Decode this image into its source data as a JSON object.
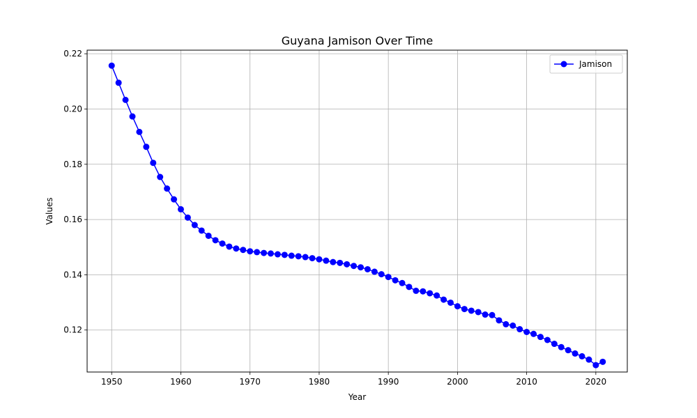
{
  "chart_data": {
    "type": "line",
    "title": "Guyana Jamison Over Time",
    "xlabel": "Year",
    "ylabel": "Values",
    "xlim": [
      1946.45,
      2024.55
    ],
    "ylim": [
      0.1048,
      0.2213
    ],
    "xticks": [
      1950,
      1960,
      1970,
      1980,
      1990,
      2000,
      2010,
      2020
    ],
    "xtick_labels": [
      "1950",
      "1960",
      "1970",
      "1980",
      "1990",
      "2000",
      "2010",
      "2020"
    ],
    "yticks": [
      0.12,
      0.14,
      0.16,
      0.18,
      0.2,
      0.22
    ],
    "ytick_labels": [
      "0.12",
      "0.14",
      "0.16",
      "0.18",
      "0.20",
      "0.22"
    ],
    "grid": true,
    "legend_position": "top-right",
    "series": [
      {
        "name": "Jamison",
        "color": "#0000ff",
        "marker": "circle",
        "x": [
          1950,
          1951,
          1952,
          1953,
          1954,
          1955,
          1956,
          1957,
          1958,
          1959,
          1960,
          1961,
          1962,
          1963,
          1964,
          1965,
          1966,
          1967,
          1968,
          1969,
          1970,
          1971,
          1972,
          1973,
          1974,
          1975,
          1976,
          1977,
          1978,
          1979,
          1980,
          1981,
          1982,
          1983,
          1984,
          1985,
          1986,
          1987,
          1988,
          1989,
          1990,
          1991,
          1992,
          1993,
          1994,
          1995,
          1996,
          1997,
          1998,
          1999,
          2000,
          2001,
          2002,
          2003,
          2004,
          2005,
          2006,
          2007,
          2008,
          2009,
          2010,
          2011,
          2012,
          2013,
          2014,
          2015,
          2016,
          2017,
          2018,
          2019,
          2020,
          2021
        ],
        "values": [
          0.2157,
          0.2095,
          0.2033,
          0.1973,
          0.1917,
          0.1863,
          0.1805,
          0.1754,
          0.1712,
          0.1673,
          0.1637,
          0.1607,
          0.158,
          0.156,
          0.1541,
          0.1525,
          0.1513,
          0.1502,
          0.1495,
          0.149,
          0.1485,
          0.1482,
          0.1479,
          0.1477,
          0.1474,
          0.1472,
          0.1469,
          0.1467,
          0.1464,
          0.146,
          0.1456,
          0.1451,
          0.1446,
          0.1443,
          0.1438,
          0.1432,
          0.1427,
          0.142,
          0.1411,
          0.1402,
          0.1392,
          0.138,
          0.137,
          0.1356,
          0.1342,
          0.134,
          0.1333,
          0.1325,
          0.131,
          0.1299,
          0.1286,
          0.1276,
          0.127,
          0.1265,
          0.1256,
          0.1254,
          0.1235,
          0.1221,
          0.1216,
          0.1203,
          0.1193,
          0.1186,
          0.1175,
          0.1164,
          0.115,
          0.1138,
          0.1127,
          0.1115,
          0.1105,
          0.1093,
          0.1073,
          0.1085
        ]
      }
    ]
  }
}
